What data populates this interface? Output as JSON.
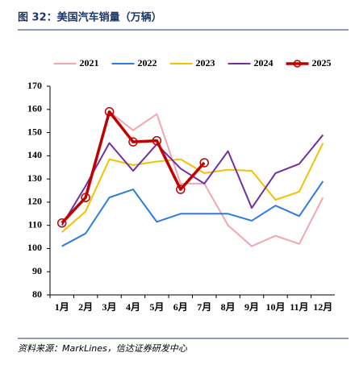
{
  "chart_data": {
    "type": "line",
    "title": "图 32：美国汽车销量（万辆）",
    "source": "资料来源：MarkLines，信达证券研发中心",
    "categories": [
      "1月",
      "2月",
      "3月",
      "4月",
      "5月",
      "6月",
      "7月",
      "8月",
      "9月",
      "10月",
      "11月",
      "12月"
    ],
    "series": [
      {
        "name": "2021",
        "color": "#f4a6b0",
        "values": [
          111,
          122,
          159,
          151,
          158,
          128,
          128,
          110,
          101,
          105.5,
          102,
          122
        ]
      },
      {
        "name": "2022",
        "color": "#2e7be0",
        "values": [
          101,
          106.5,
          122,
          125.5,
          111.5,
          115,
          115,
          115,
          112,
          118.5,
          114,
          129
        ]
      },
      {
        "name": "2023",
        "color": "#f2c200",
        "values": [
          107,
          116,
          138.5,
          136,
          137.5,
          138.5,
          132.5,
          134,
          133.5,
          121,
          124.5,
          145.5
        ]
      },
      {
        "name": "2024",
        "color": "#7030a0",
        "values": [
          110,
          127,
          145.5,
          133.5,
          145,
          134.5,
          128,
          142,
          117.5,
          132.5,
          136.5,
          149
        ]
      },
      {
        "name": "2025",
        "color": "#c00000",
        "marker": true,
        "values": [
          111,
          122,
          159,
          146,
          146.5,
          125.5,
          137,
          null,
          null,
          null,
          null,
          null
        ]
      }
    ],
    "ylim": [
      80,
      170
    ],
    "yticks": [
      80,
      90,
      100,
      110,
      120,
      130,
      140,
      150,
      160,
      170
    ],
    "grid": false,
    "legend": "top"
  }
}
